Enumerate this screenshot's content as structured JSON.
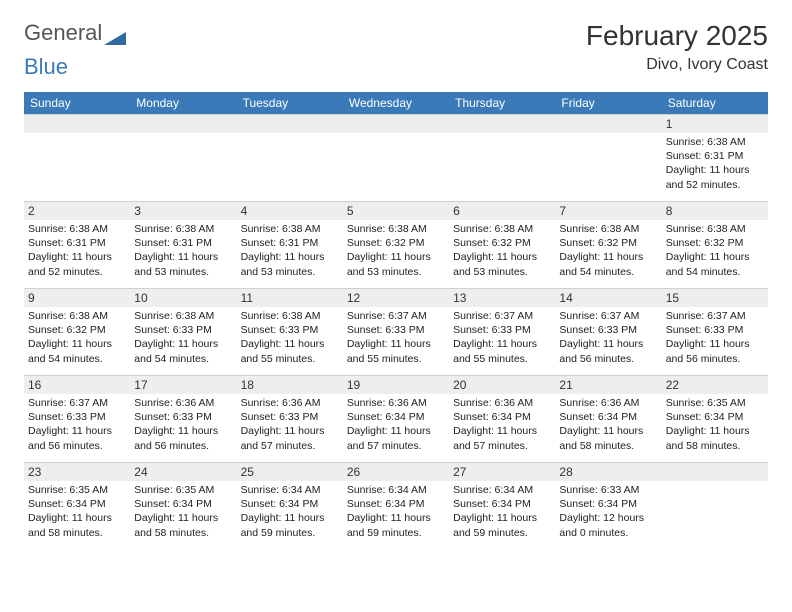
{
  "logo": {
    "text1": "General",
    "text2": "Blue"
  },
  "title": "February 2025",
  "location": "Divo, Ivory Coast",
  "colors": {
    "header_bg": "#3a7ab8",
    "header_text": "#ffffff",
    "daynum_bg": "#eeeeee",
    "border": "#d0d0d0",
    "text": "#222222"
  },
  "day_names": [
    "Sunday",
    "Monday",
    "Tuesday",
    "Wednesday",
    "Thursday",
    "Friday",
    "Saturday"
  ],
  "weeks": [
    [
      {
        "n": "",
        "sr": "",
        "ss": "",
        "dl": ""
      },
      {
        "n": "",
        "sr": "",
        "ss": "",
        "dl": ""
      },
      {
        "n": "",
        "sr": "",
        "ss": "",
        "dl": ""
      },
      {
        "n": "",
        "sr": "",
        "ss": "",
        "dl": ""
      },
      {
        "n": "",
        "sr": "",
        "ss": "",
        "dl": ""
      },
      {
        "n": "",
        "sr": "",
        "ss": "",
        "dl": ""
      },
      {
        "n": "1",
        "sr": "Sunrise: 6:38 AM",
        "ss": "Sunset: 6:31 PM",
        "dl": "Daylight: 11 hours and 52 minutes."
      }
    ],
    [
      {
        "n": "2",
        "sr": "Sunrise: 6:38 AM",
        "ss": "Sunset: 6:31 PM",
        "dl": "Daylight: 11 hours and 52 minutes."
      },
      {
        "n": "3",
        "sr": "Sunrise: 6:38 AM",
        "ss": "Sunset: 6:31 PM",
        "dl": "Daylight: 11 hours and 53 minutes."
      },
      {
        "n": "4",
        "sr": "Sunrise: 6:38 AM",
        "ss": "Sunset: 6:31 PM",
        "dl": "Daylight: 11 hours and 53 minutes."
      },
      {
        "n": "5",
        "sr": "Sunrise: 6:38 AM",
        "ss": "Sunset: 6:32 PM",
        "dl": "Daylight: 11 hours and 53 minutes."
      },
      {
        "n": "6",
        "sr": "Sunrise: 6:38 AM",
        "ss": "Sunset: 6:32 PM",
        "dl": "Daylight: 11 hours and 53 minutes."
      },
      {
        "n": "7",
        "sr": "Sunrise: 6:38 AM",
        "ss": "Sunset: 6:32 PM",
        "dl": "Daylight: 11 hours and 54 minutes."
      },
      {
        "n": "8",
        "sr": "Sunrise: 6:38 AM",
        "ss": "Sunset: 6:32 PM",
        "dl": "Daylight: 11 hours and 54 minutes."
      }
    ],
    [
      {
        "n": "9",
        "sr": "Sunrise: 6:38 AM",
        "ss": "Sunset: 6:32 PM",
        "dl": "Daylight: 11 hours and 54 minutes."
      },
      {
        "n": "10",
        "sr": "Sunrise: 6:38 AM",
        "ss": "Sunset: 6:33 PM",
        "dl": "Daylight: 11 hours and 54 minutes."
      },
      {
        "n": "11",
        "sr": "Sunrise: 6:38 AM",
        "ss": "Sunset: 6:33 PM",
        "dl": "Daylight: 11 hours and 55 minutes."
      },
      {
        "n": "12",
        "sr": "Sunrise: 6:37 AM",
        "ss": "Sunset: 6:33 PM",
        "dl": "Daylight: 11 hours and 55 minutes."
      },
      {
        "n": "13",
        "sr": "Sunrise: 6:37 AM",
        "ss": "Sunset: 6:33 PM",
        "dl": "Daylight: 11 hours and 55 minutes."
      },
      {
        "n": "14",
        "sr": "Sunrise: 6:37 AM",
        "ss": "Sunset: 6:33 PM",
        "dl": "Daylight: 11 hours and 56 minutes."
      },
      {
        "n": "15",
        "sr": "Sunrise: 6:37 AM",
        "ss": "Sunset: 6:33 PM",
        "dl": "Daylight: 11 hours and 56 minutes."
      }
    ],
    [
      {
        "n": "16",
        "sr": "Sunrise: 6:37 AM",
        "ss": "Sunset: 6:33 PM",
        "dl": "Daylight: 11 hours and 56 minutes."
      },
      {
        "n": "17",
        "sr": "Sunrise: 6:36 AM",
        "ss": "Sunset: 6:33 PM",
        "dl": "Daylight: 11 hours and 56 minutes."
      },
      {
        "n": "18",
        "sr": "Sunrise: 6:36 AM",
        "ss": "Sunset: 6:33 PM",
        "dl": "Daylight: 11 hours and 57 minutes."
      },
      {
        "n": "19",
        "sr": "Sunrise: 6:36 AM",
        "ss": "Sunset: 6:34 PM",
        "dl": "Daylight: 11 hours and 57 minutes."
      },
      {
        "n": "20",
        "sr": "Sunrise: 6:36 AM",
        "ss": "Sunset: 6:34 PM",
        "dl": "Daylight: 11 hours and 57 minutes."
      },
      {
        "n": "21",
        "sr": "Sunrise: 6:36 AM",
        "ss": "Sunset: 6:34 PM",
        "dl": "Daylight: 11 hours and 58 minutes."
      },
      {
        "n": "22",
        "sr": "Sunrise: 6:35 AM",
        "ss": "Sunset: 6:34 PM",
        "dl": "Daylight: 11 hours and 58 minutes."
      }
    ],
    [
      {
        "n": "23",
        "sr": "Sunrise: 6:35 AM",
        "ss": "Sunset: 6:34 PM",
        "dl": "Daylight: 11 hours and 58 minutes."
      },
      {
        "n": "24",
        "sr": "Sunrise: 6:35 AM",
        "ss": "Sunset: 6:34 PM",
        "dl": "Daylight: 11 hours and 58 minutes."
      },
      {
        "n": "25",
        "sr": "Sunrise: 6:34 AM",
        "ss": "Sunset: 6:34 PM",
        "dl": "Daylight: 11 hours and 59 minutes."
      },
      {
        "n": "26",
        "sr": "Sunrise: 6:34 AM",
        "ss": "Sunset: 6:34 PM",
        "dl": "Daylight: 11 hours and 59 minutes."
      },
      {
        "n": "27",
        "sr": "Sunrise: 6:34 AM",
        "ss": "Sunset: 6:34 PM",
        "dl": "Daylight: 11 hours and 59 minutes."
      },
      {
        "n": "28",
        "sr": "Sunrise: 6:33 AM",
        "ss": "Sunset: 6:34 PM",
        "dl": "Daylight: 12 hours and 0 minutes."
      },
      {
        "n": "",
        "sr": "",
        "ss": "",
        "dl": ""
      }
    ]
  ]
}
